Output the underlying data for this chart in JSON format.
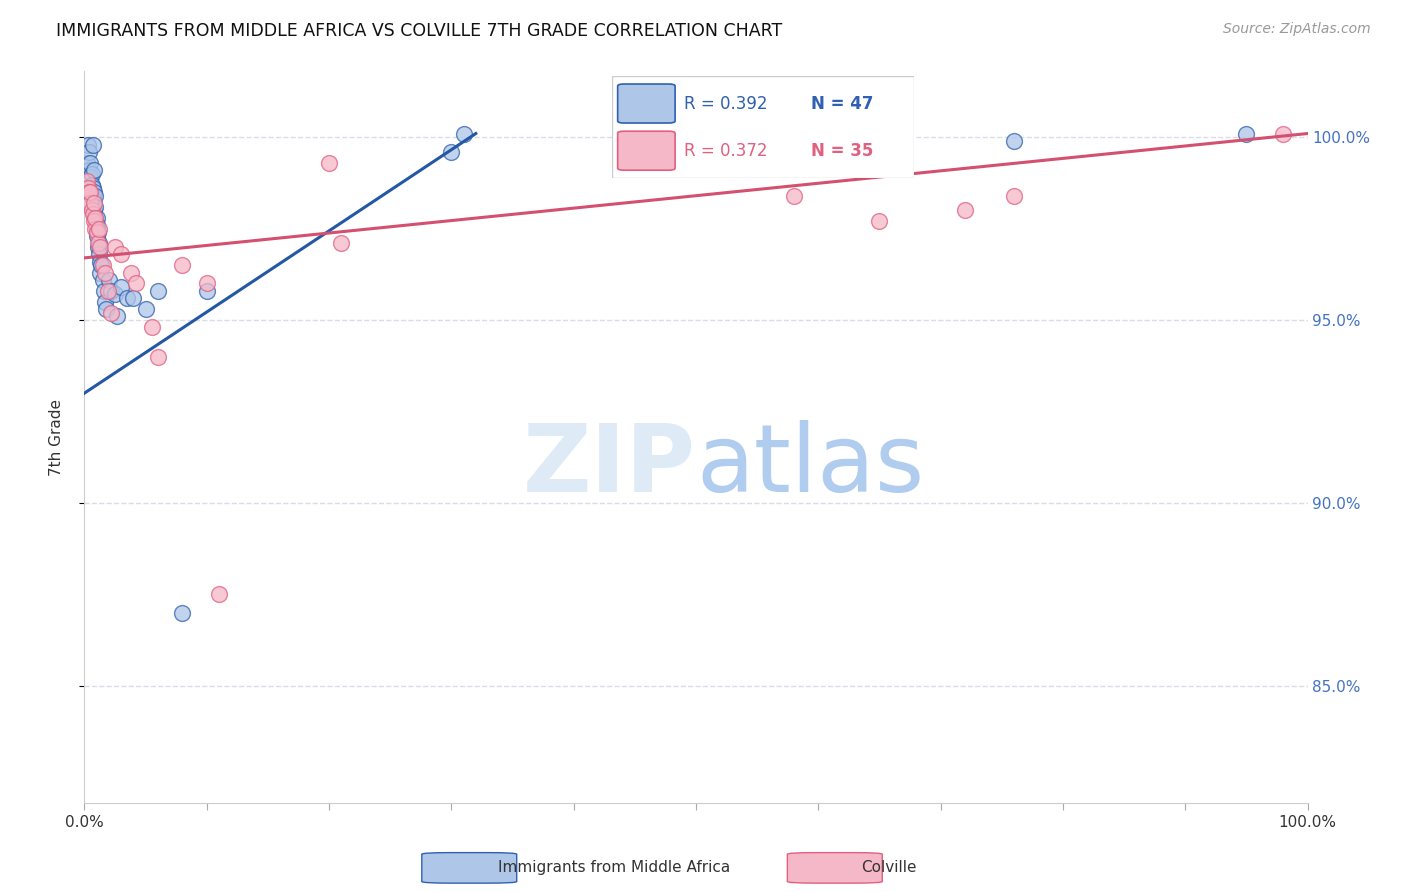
{
  "title": "IMMIGRANTS FROM MIDDLE AFRICA VS COLVILLE 7TH GRADE CORRELATION CHART",
  "source": "Source: ZipAtlas.com",
  "ylabel": "7th Grade",
  "y_min": 0.818,
  "y_max": 1.018,
  "x_min": 0.0,
  "x_max": 1.0,
  "y_ticks": [
    0.85,
    0.9,
    0.95,
    1.0
  ],
  "y_tick_labels": [
    "85.0%",
    "90.0%",
    "95.0%",
    "100.0%"
  ],
  "legend_blue_R": "R = 0.392",
  "legend_blue_N": "N = 47",
  "legend_pink_R": "R = 0.372",
  "legend_pink_N": "N = 35",
  "blue_color": "#aec6e8",
  "blue_edge_color": "#3060b0",
  "pink_color": "#f5b8c8",
  "pink_edge_color": "#e06080",
  "grid_color": "#d8dce8",
  "blue_line_color": "#2457a4",
  "pink_line_color": "#d45070",
  "blue_trendline_x": [
    0.0,
    0.32
  ],
  "blue_trendline_y": [
    0.93,
    1.001
  ],
  "pink_trendline_x": [
    0.0,
    1.0
  ],
  "pink_trendline_y": [
    0.967,
    1.001
  ],
  "blue_points_x": [
    0.002,
    0.003,
    0.004,
    0.004,
    0.005,
    0.005,
    0.006,
    0.006,
    0.007,
    0.007,
    0.007,
    0.008,
    0.008,
    0.008,
    0.009,
    0.009,
    0.009,
    0.01,
    0.01,
    0.01,
    0.01,
    0.011,
    0.011,
    0.012,
    0.012,
    0.013,
    0.013,
    0.014,
    0.015,
    0.016,
    0.017,
    0.018,
    0.02,
    0.022,
    0.025,
    0.027,
    0.03,
    0.035,
    0.04,
    0.05,
    0.06,
    0.08,
    0.1,
    0.3,
    0.31,
    0.76,
    0.95
  ],
  "blue_points_y": [
    0.993,
    0.998,
    0.996,
    0.991,
    0.993,
    0.989,
    0.99,
    0.987,
    0.986,
    0.983,
    0.998,
    0.985,
    0.98,
    0.991,
    0.984,
    0.981,
    0.978,
    0.978,
    0.976,
    0.975,
    0.973,
    0.974,
    0.97,
    0.971,
    0.968,
    0.966,
    0.963,
    0.965,
    0.961,
    0.958,
    0.955,
    0.953,
    0.961,
    0.958,
    0.957,
    0.951,
    0.959,
    0.956,
    0.956,
    0.953,
    0.958,
    0.87,
    0.958,
    0.996,
    1.001,
    0.999,
    1.001
  ],
  "pink_points_x": [
    0.002,
    0.003,
    0.004,
    0.005,
    0.005,
    0.006,
    0.007,
    0.008,
    0.008,
    0.009,
    0.009,
    0.01,
    0.011,
    0.012,
    0.013,
    0.015,
    0.017,
    0.019,
    0.022,
    0.025,
    0.03,
    0.038,
    0.042,
    0.055,
    0.06,
    0.08,
    0.1,
    0.11,
    0.2,
    0.21,
    0.58,
    0.65,
    0.72,
    0.76,
    0.98
  ],
  "pink_points_y": [
    0.988,
    0.986,
    0.985,
    0.982,
    0.985,
    0.98,
    0.979,
    0.977,
    0.982,
    0.975,
    0.978,
    0.974,
    0.971,
    0.975,
    0.97,
    0.965,
    0.963,
    0.958,
    0.952,
    0.97,
    0.968,
    0.963,
    0.96,
    0.948,
    0.94,
    0.965,
    0.96,
    0.875,
    0.993,
    0.971,
    0.984,
    0.977,
    0.98,
    0.984,
    1.001
  ]
}
